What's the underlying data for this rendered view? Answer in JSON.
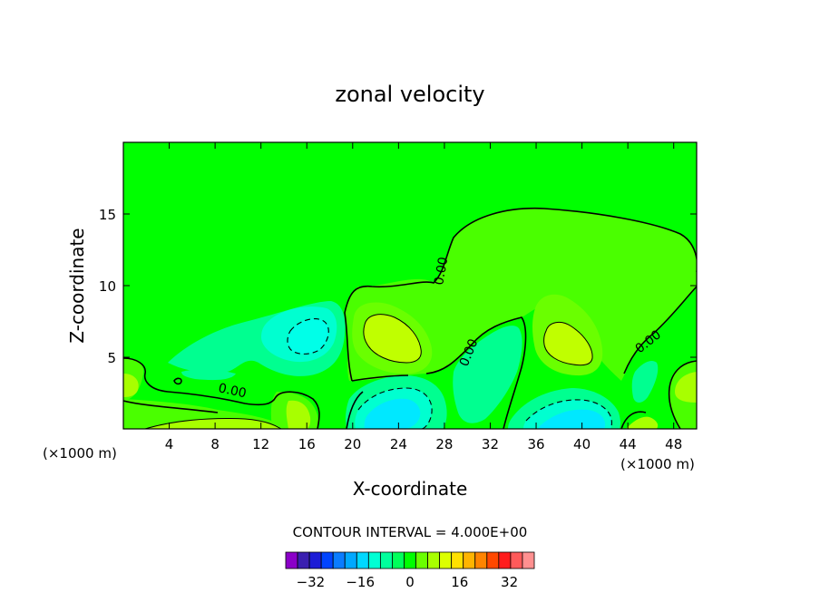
{
  "chart_data": {
    "type": "heatmap",
    "title": "zonal velocity",
    "xlabel": "X-coordinate",
    "ylabel": "Z-coordinate",
    "x_unit_label": "(×1000 m)",
    "x_unit_label_right": "(×1000 m)",
    "xlim": [
      0,
      50
    ],
    "ylim": [
      0,
      20
    ],
    "x_ticks": [
      4,
      8,
      12,
      16,
      20,
      24,
      28,
      32,
      36,
      40,
      44,
      48
    ],
    "y_ticks": [
      5,
      10,
      15
    ],
    "contour_interval_text": "CONTOUR INTERVAL = 4.000E+00",
    "contour_interval": 4,
    "zero_contour_label": "0.00",
    "colorbar": {
      "levels": [
        -40,
        -36,
        -32,
        -28,
        -24,
        -20,
        -16,
        -12,
        -8,
        -4,
        0,
        4,
        8,
        12,
        16,
        20,
        24,
        28,
        32,
        36,
        40
      ],
      "colors": [
        "#8b00c8",
        "#3a1fb0",
        "#1c1cd6",
        "#0044ff",
        "#0a7cff",
        "#00a8ff",
        "#00d8ff",
        "#00ffd4",
        "#00ff9c",
        "#00ff5a",
        "#00ff00",
        "#6aff00",
        "#a8ff00",
        "#dcff00",
        "#ffe000",
        "#ffb400",
        "#ff8400",
        "#ff4800",
        "#ff1c1c",
        "#ff5a5a",
        "#ff9090"
      ],
      "tick_labels": [
        "-32",
        "-16",
        "0",
        "16",
        "32"
      ],
      "tick_values": [
        -32,
        -16,
        0,
        16,
        32
      ]
    },
    "features": [
      {
        "kind": "max",
        "x": 23,
        "z": 6.5,
        "value": 10
      },
      {
        "kind": "max",
        "x": 37.8,
        "z": 6.0,
        "value": 10
      },
      {
        "kind": "min",
        "x": 16.3,
        "z": 6.7,
        "value": -8
      },
      {
        "kind": "min",
        "x": 23.8,
        "z": 1.6,
        "value": -12
      },
      {
        "kind": "min",
        "x": 39.5,
        "z": 0.7,
        "value": -12
      }
    ]
  }
}
